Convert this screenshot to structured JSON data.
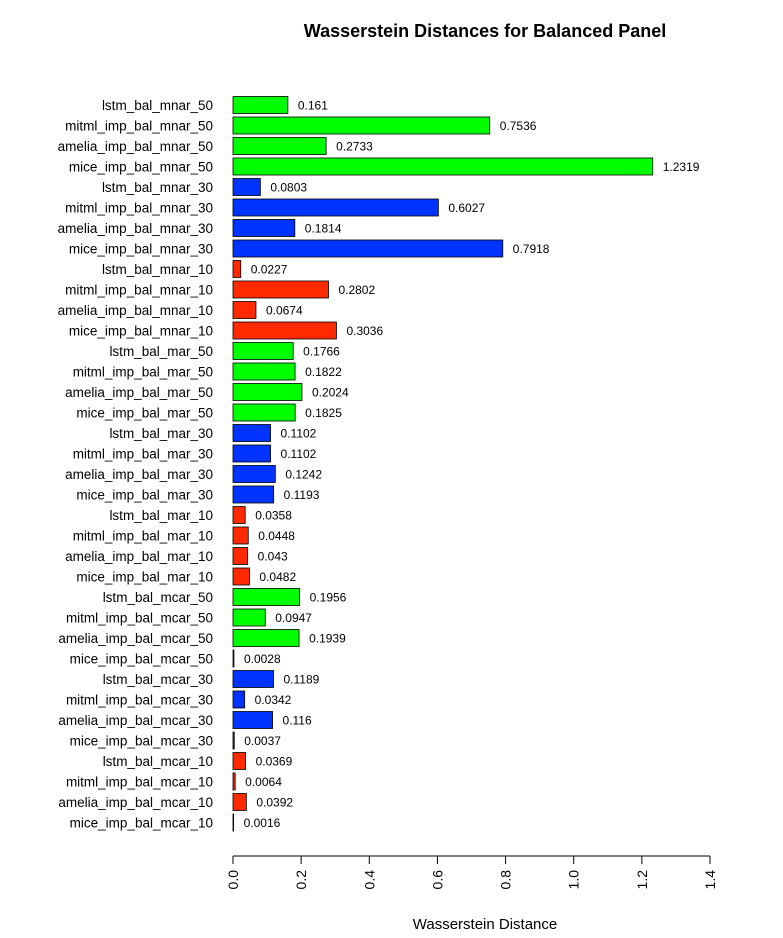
{
  "chart_data": {
    "type": "bar",
    "orientation": "horizontal",
    "title": "Wasserstein Distances for Balanced Panel",
    "xlabel": "Wasserstein Distance",
    "ylabel": "",
    "xlim": [
      0,
      1.4
    ],
    "xticks": [
      "0.0",
      "0.2",
      "0.4",
      "0.6",
      "0.8",
      "1.0",
      "1.2",
      "1.4"
    ],
    "grid": false,
    "colors": {
      "green": "#00ff00",
      "blue": "#0033ff",
      "red": "#ff2a00"
    },
    "bars": [
      {
        "label": "lstm_bal_mnar_50",
        "value": 0.161,
        "display": "0.161",
        "color": "green"
      },
      {
        "label": "mitml_imp_bal_mnar_50",
        "value": 0.7536,
        "display": "0.7536",
        "color": "green"
      },
      {
        "label": "amelia_imp_bal_mnar_50",
        "value": 0.2733,
        "display": "0.2733",
        "color": "green"
      },
      {
        "label": "mice_imp_bal_mnar_50",
        "value": 1.2319,
        "display": "1.2319",
        "color": "green"
      },
      {
        "label": "lstm_bal_mnar_30",
        "value": 0.0803,
        "display": "0.0803",
        "color": "blue"
      },
      {
        "label": "mitml_imp_bal_mnar_30",
        "value": 0.6027,
        "display": "0.6027",
        "color": "blue"
      },
      {
        "label": "amelia_imp_bal_mnar_30",
        "value": 0.1814,
        "display": "0.1814",
        "color": "blue"
      },
      {
        "label": "mice_imp_bal_mnar_30",
        "value": 0.7918,
        "display": "0.7918",
        "color": "blue"
      },
      {
        "label": "lstm_bal_mnar_10",
        "value": 0.0227,
        "display": "0.0227",
        "color": "red"
      },
      {
        "label": "mitml_imp_bal_mnar_10",
        "value": 0.2802,
        "display": "0.2802",
        "color": "red"
      },
      {
        "label": "amelia_imp_bal_mnar_10",
        "value": 0.0674,
        "display": "0.0674",
        "color": "red"
      },
      {
        "label": "mice_imp_bal_mnar_10",
        "value": 0.3036,
        "display": "0.3036",
        "color": "red"
      },
      {
        "label": "lstm_bal_mar_50",
        "value": 0.1766,
        "display": "0.1766",
        "color": "green"
      },
      {
        "label": "mitml_imp_bal_mar_50",
        "value": 0.1822,
        "display": "0.1822",
        "color": "green"
      },
      {
        "label": "amelia_imp_bal_mar_50",
        "value": 0.2024,
        "display": "0.2024",
        "color": "green"
      },
      {
        "label": "mice_imp_bal_mar_50",
        "value": 0.1825,
        "display": "0.1825",
        "color": "green"
      },
      {
        "label": "lstm_bal_mar_30",
        "value": 0.1102,
        "display": "0.1102",
        "color": "blue"
      },
      {
        "label": "mitml_imp_bal_mar_30",
        "value": 0.1102,
        "display": "0.1102",
        "color": "blue"
      },
      {
        "label": "amelia_imp_bal_mar_30",
        "value": 0.1242,
        "display": "0.1242",
        "color": "blue"
      },
      {
        "label": "mice_imp_bal_mar_30",
        "value": 0.1193,
        "display": "0.1193",
        "color": "blue"
      },
      {
        "label": "lstm_bal_mar_10",
        "value": 0.0358,
        "display": "0.0358",
        "color": "red"
      },
      {
        "label": "mitml_imp_bal_mar_10",
        "value": 0.0448,
        "display": "0.0448",
        "color": "red"
      },
      {
        "label": "amelia_imp_bal_mar_10",
        "value": 0.043,
        "display": "0.043",
        "color": "red"
      },
      {
        "label": "mice_imp_bal_mar_10",
        "value": 0.0482,
        "display": "0.0482",
        "color": "red"
      },
      {
        "label": "lstm_bal_mcar_50",
        "value": 0.1956,
        "display": "0.1956",
        "color": "green"
      },
      {
        "label": "mitml_imp_bal_mcar_50",
        "value": 0.0947,
        "display": "0.0947",
        "color": "green"
      },
      {
        "label": "amelia_imp_bal_mcar_50",
        "value": 0.1939,
        "display": "0.1939",
        "color": "green"
      },
      {
        "label": "mice_imp_bal_mcar_50",
        "value": 0.0028,
        "display": "0.0028",
        "color": "green"
      },
      {
        "label": "lstm_bal_mcar_30",
        "value": 0.1189,
        "display": "0.1189",
        "color": "blue"
      },
      {
        "label": "mitml_imp_bal_mcar_30",
        "value": 0.0342,
        "display": "0.0342",
        "color": "blue"
      },
      {
        "label": "amelia_imp_bal_mcar_30",
        "value": 0.116,
        "display": "0.116",
        "color": "blue"
      },
      {
        "label": "mice_imp_bal_mcar_30",
        "value": 0.0037,
        "display": "0.0037",
        "color": "blue"
      },
      {
        "label": "lstm_bal_mcar_10",
        "value": 0.0369,
        "display": "0.0369",
        "color": "red"
      },
      {
        "label": "mitml_imp_bal_mcar_10",
        "value": 0.0064,
        "display": "0.0064",
        "color": "red"
      },
      {
        "label": "amelia_imp_bal_mcar_10",
        "value": 0.0392,
        "display": "0.0392",
        "color": "red"
      },
      {
        "label": "mice_imp_bal_mcar_10",
        "value": 0.0016,
        "display": "0.0016",
        "color": "red"
      }
    ]
  }
}
